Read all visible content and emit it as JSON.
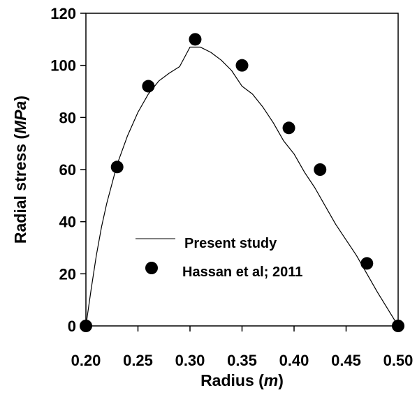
{
  "chart_data": {
    "type": "line",
    "xlabel": "Radius (",
    "xlabel_unit": "m",
    "xlabel_close": ")",
    "ylabel": "Radial stress (",
    "ylabel_unit": "MPa",
    "ylabel_close": ")",
    "xlim": [
      0.2,
      0.5
    ],
    "ylim": [
      0,
      120
    ],
    "x_ticks": [
      "0.20",
      "0.25",
      "0.30",
      "0.35",
      "0.40",
      "0.45",
      "0.50"
    ],
    "y_ticks": [
      "0",
      "20",
      "40",
      "60",
      "80",
      "100",
      "120"
    ],
    "grid": false,
    "legend_position": "center-left",
    "series": [
      {
        "name": "Present study",
        "style": "line",
        "color": "#000000",
        "x": [
          0.2,
          0.205,
          0.21,
          0.215,
          0.22,
          0.23,
          0.24,
          0.25,
          0.26,
          0.27,
          0.28,
          0.29,
          0.3,
          0.31,
          0.32,
          0.33,
          0.34,
          0.35,
          0.36,
          0.37,
          0.38,
          0.39,
          0.4,
          0.41,
          0.42,
          0.43,
          0.44,
          0.45,
          0.46,
          0.47,
          0.48,
          0.49,
          0.5
        ],
        "y": [
          0,
          14,
          27,
          38,
          47,
          62,
          73,
          82,
          89,
          94,
          97,
          99.5,
          107,
          107,
          105,
          102,
          98,
          92,
          89,
          84,
          78,
          71,
          66,
          59,
          53,
          46,
          39,
          33,
          27,
          20,
          13,
          6.5,
          0
        ]
      },
      {
        "name": "Hassan et al; 2011",
        "style": "scatter",
        "color": "#000000",
        "x": [
          0.2,
          0.23,
          0.26,
          0.305,
          0.35,
          0.395,
          0.425,
          0.47,
          0.5
        ],
        "y": [
          0,
          61,
          92,
          110,
          100,
          76,
          60,
          24,
          0
        ]
      }
    ]
  }
}
